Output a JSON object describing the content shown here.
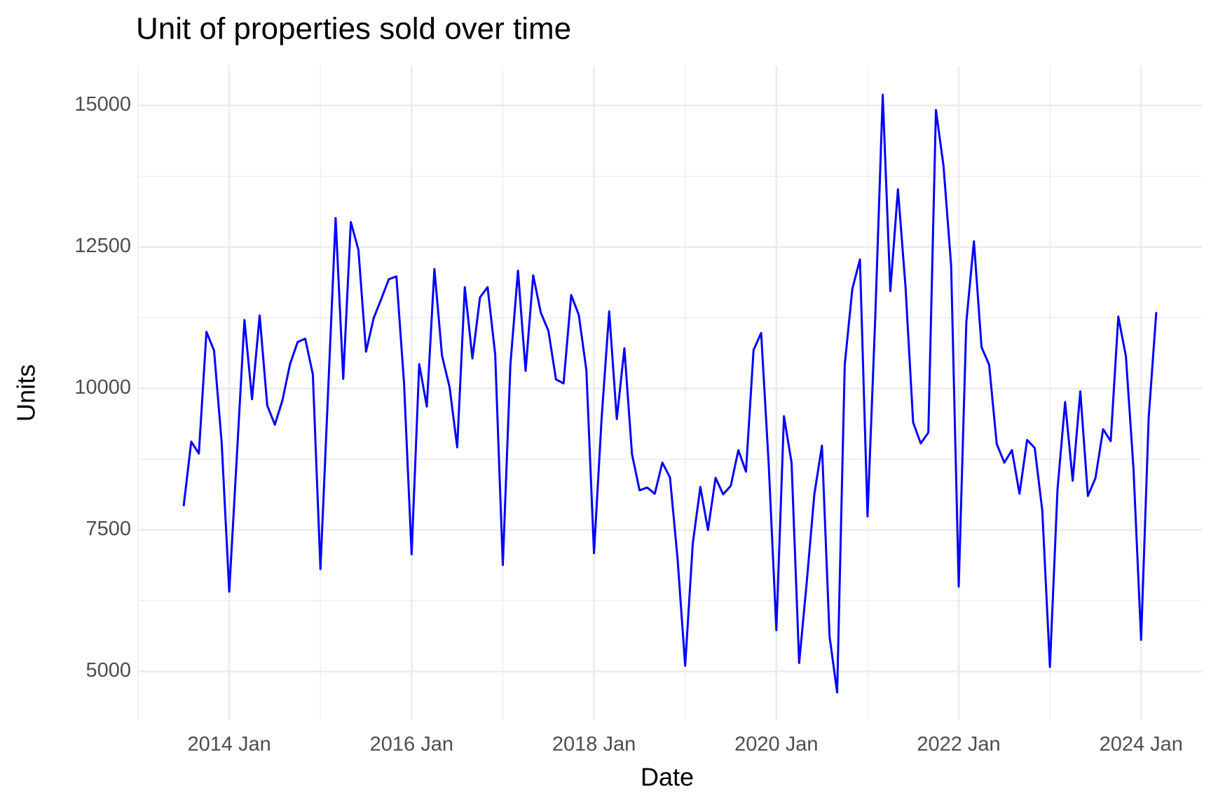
{
  "chart_data": {
    "type": "line",
    "title": "Unit of properties sold over time",
    "x_label": "Date",
    "y_label": "Units",
    "x": [
      "2013-07",
      "2013-08",
      "2013-09",
      "2013-10",
      "2013-11",
      "2013-12",
      "2014-01",
      "2014-02",
      "2014-03",
      "2014-04",
      "2014-05",
      "2014-06",
      "2014-07",
      "2014-08",
      "2014-09",
      "2014-10",
      "2014-11",
      "2014-12",
      "2015-01",
      "2015-02",
      "2015-03",
      "2015-04",
      "2015-05",
      "2015-06",
      "2015-07",
      "2015-08",
      "2015-09",
      "2015-10",
      "2015-11",
      "2015-12",
      "2016-01",
      "2016-02",
      "2016-03",
      "2016-04",
      "2016-05",
      "2016-06",
      "2016-07",
      "2016-08",
      "2016-09",
      "2016-10",
      "2016-11",
      "2016-12",
      "2017-01",
      "2017-02",
      "2017-03",
      "2017-04",
      "2017-05",
      "2017-06",
      "2017-07",
      "2017-08",
      "2017-09",
      "2017-10",
      "2017-11",
      "2017-12",
      "2018-01",
      "2018-02",
      "2018-03",
      "2018-04",
      "2018-05",
      "2018-06",
      "2018-07",
      "2018-08",
      "2018-09",
      "2018-10",
      "2018-11",
      "2018-12",
      "2019-01",
      "2019-02",
      "2019-03",
      "2019-04",
      "2019-05",
      "2019-06",
      "2019-07",
      "2019-08",
      "2019-09",
      "2019-10",
      "2019-11",
      "2019-12",
      "2020-01",
      "2020-02",
      "2020-03",
      "2020-04",
      "2020-05",
      "2020-06",
      "2020-07",
      "2020-08",
      "2020-09",
      "2020-10",
      "2020-11",
      "2020-12",
      "2021-01",
      "2021-02",
      "2021-03",
      "2021-04",
      "2021-05",
      "2021-06",
      "2021-07",
      "2021-08",
      "2021-09",
      "2021-10",
      "2021-11",
      "2021-12",
      "2022-01",
      "2022-02",
      "2022-03",
      "2022-04",
      "2022-05",
      "2022-06",
      "2022-07",
      "2022-08",
      "2022-09",
      "2022-10",
      "2022-11",
      "2022-12",
      "2023-01",
      "2023-02",
      "2023-03",
      "2023-04",
      "2023-05",
      "2023-06",
      "2023-07",
      "2023-08",
      "2023-09",
      "2023-10",
      "2023-11",
      "2023-12",
      "2024-01",
      "2024-02",
      "2024-03"
    ],
    "series": [
      {
        "name": "Units",
        "color": "#0000ff",
        "values": [
          7920,
          9060,
          8850,
          11000,
          10670,
          9050,
          6410,
          8800,
          11210,
          9810,
          11290,
          9700,
          9360,
          9790,
          10430,
          10820,
          10880,
          10250,
          6810,
          9910,
          13010,
          10170,
          12940,
          12450,
          10650,
          11240,
          11580,
          11930,
          11980,
          10100,
          7070,
          10430,
          9680,
          12110,
          10580,
          10020,
          8960,
          11790,
          10530,
          11610,
          11790,
          10600,
          6880,
          10420,
          12080,
          10310,
          12000,
          11340,
          11020,
          10160,
          10090,
          11650,
          11300,
          10320,
          7090,
          9460,
          11360,
          9460,
          10710,
          8840,
          8200,
          8250,
          8140,
          8690,
          8430,
          6990,
          5100,
          7260,
          8260,
          7500,
          8420,
          8130,
          8280,
          8910,
          8530,
          10680,
          10980,
          8640,
          5730,
          9510,
          8690,
          5150,
          6580,
          8130,
          8990,
          5620,
          4630,
          10420,
          11760,
          12280,
          7740,
          11200,
          15190,
          11720,
          13520,
          11790,
          9400,
          9030,
          9220,
          14920,
          13930,
          12170,
          6500,
          11170,
          12600,
          10730,
          10420,
          9020,
          8690,
          8910,
          8140,
          9090,
          8950,
          7840,
          5080,
          8220,
          9760,
          8370,
          9950,
          8100,
          8420,
          9280,
          9070,
          11270,
          10570,
          8580,
          5560,
          9490,
          11350
        ]
      }
    ],
    "xlim": [
      "2013-01",
      "2024-09"
    ],
    "xticks": [
      {
        "value": "2014-01",
        "label": "2014 Jan"
      },
      {
        "value": "2016-01",
        "label": "2016 Jan"
      },
      {
        "value": "2018-01",
        "label": "2018 Jan"
      },
      {
        "value": "2020-01",
        "label": "2020 Jan"
      },
      {
        "value": "2022-01",
        "label": "2022 Jan"
      },
      {
        "value": "2024-01",
        "label": "2024 Jan"
      }
    ],
    "ylim": [
      4140,
      15700
    ],
    "yticks": [
      5000,
      7500,
      10000,
      12500,
      15000
    ],
    "grid": true
  }
}
